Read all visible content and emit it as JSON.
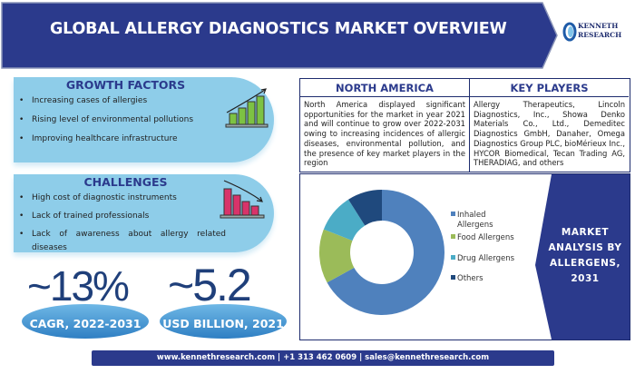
{
  "header": {
    "title": "GLOBAL ALLERGY DIAGNOSTICS MARKET OVERVIEW",
    "logo_text": [
      "KENNETH",
      "RESEARCH"
    ]
  },
  "growth": {
    "title": "GROWTH FACTORS",
    "items": [
      "Increasing cases of allergies",
      "Rising level of environmental pollutions",
      "Improving healthcare infrastructure"
    ],
    "icon": "bar-chart-up-icon"
  },
  "challenges": {
    "title": "CHALLENGES",
    "items": [
      "High cost of diagnostic instruments",
      "Lack of trained professionals",
      "Lack of awareness about allergy related diseases"
    ],
    "icon": "bar-chart-down-icon"
  },
  "stats": [
    {
      "value": "~13%",
      "label": "CAGR, 2022-2031"
    },
    {
      "value": "~5.2",
      "label": "USD BILLION, 2021"
    }
  ],
  "north_america": {
    "title": "NORTH AMERICA",
    "text": "North America displayed significant opportunities for the market in year 2021 and will continue to grow over 2022-2031 owing to increasing incidences of allergic diseases, environmental pollution, and the presence of key market players in the region"
  },
  "key_players": {
    "title": "KEY PLAYERS",
    "text": "Allergy Therapeutics, Lincoln Diagnostics, Inc., Showa Denko Materials Co., Ltd., Demeditec Diagnostics GmbH, Danaher, Omega Diagnostics Group PLC, bioMérieux Inc., HYCOR Biomedical, Tecan Trading AG, THERADIAG, and others"
  },
  "market_label": "MARKET ANALYSIS BY ALLERGENS, 2031",
  "chart_data": {
    "type": "pie",
    "donut": true,
    "categories": [
      "Inhaled Allergens",
      "Food Allergens",
      "Drug Allergens",
      "Others"
    ],
    "values": [
      67,
      14,
      10,
      9
    ],
    "colors": [
      "#4f81bd",
      "#9bbb59",
      "#4bacc6",
      "#1f497d"
    ],
    "legend": "right"
  },
  "footer": "www.kennethresearch.com | +1 313 462 0609 | sales@kennethresearch.com",
  "colors": {
    "primary": "#2b3a8c",
    "panel": "#8ecde9"
  }
}
